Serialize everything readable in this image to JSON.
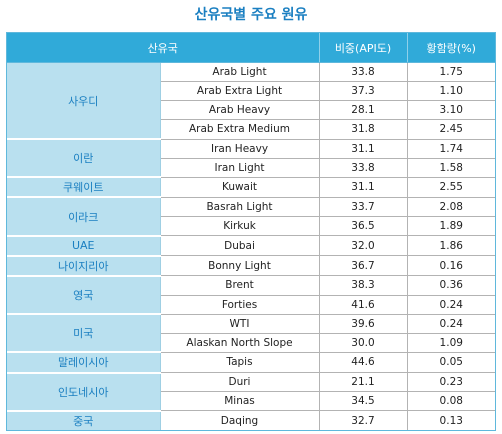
{
  "title": "산유국별 주요 원유",
  "headers": [
    "산유국",
    "",
    "비중(API도)",
    "황함량(%)"
  ],
  "groups": [
    {
      "country": "사우디",
      "rows": [
        {
          "crude": "Arab Light",
          "api": "33.8",
          "sulfur": "1.75"
        },
        {
          "crude": "Arab Extra Light",
          "api": "37.3",
          "sulfur": "1.10"
        },
        {
          "crude": "Arab Heavy",
          "api": "28.1",
          "sulfur": "3.10"
        },
        {
          "crude": "Arab Extra Medium",
          "api": "31.8",
          "sulfur": "2.45"
        }
      ]
    },
    {
      "country": "이란",
      "rows": [
        {
          "crude": "Iran Heavy",
          "api": "31.1",
          "sulfur": "1.74"
        },
        {
          "crude": "Iran Light",
          "api": "33.8",
          "sulfur": "1.58"
        }
      ]
    },
    {
      "country": "쿠웨이트",
      "rows": [
        {
          "crude": "Kuwait",
          "api": "31.1",
          "sulfur": "2.55"
        }
      ]
    },
    {
      "country": "이라크",
      "rows": [
        {
          "crude": "Basrah Light",
          "api": "33.7",
          "sulfur": "2.08"
        },
        {
          "crude": "Kirkuk",
          "api": "36.5",
          "sulfur": "1.89"
        }
      ]
    },
    {
      "country": "UAE",
      "rows": [
        {
          "crude": "Dubai",
          "api": "32.0",
          "sulfur": "1.86"
        }
      ]
    },
    {
      "country": "나이지리아",
      "rows": [
        {
          "crude": "Bonny Light",
          "api": "36.7",
          "sulfur": "0.16"
        }
      ]
    },
    {
      "country": "영국",
      "rows": [
        {
          "crude": "Brent",
          "api": "38.3",
          "sulfur": "0.36"
        },
        {
          "crude": "Forties",
          "api": "41.6",
          "sulfur": "0.24"
        }
      ]
    },
    {
      "country": "미국",
      "rows": [
        {
          "crude": "WTI",
          "api": "39.6",
          "sulfur": "0.24"
        },
        {
          "crude": "Alaskan North Slope",
          "api": "30.0",
          "sulfur": "1.09"
        }
      ]
    },
    {
      "country": "말레이시아",
      "rows": [
        {
          "crude": "Tapis",
          "api": "44.6",
          "sulfur": "0.05"
        }
      ]
    },
    {
      "country": "인도네시아",
      "rows": [
        {
          "crude": "Duri",
          "api": "21.1",
          "sulfur": "0.23"
        },
        {
          "crude": "Minas",
          "api": "34.5",
          "sulfur": "0.08"
        }
      ]
    },
    {
      "country": "중국",
      "rows": [
        {
          "crude": "Daqing",
          "api": "32.7",
          "sulfur": "0.13"
        }
      ]
    }
  ]
}
